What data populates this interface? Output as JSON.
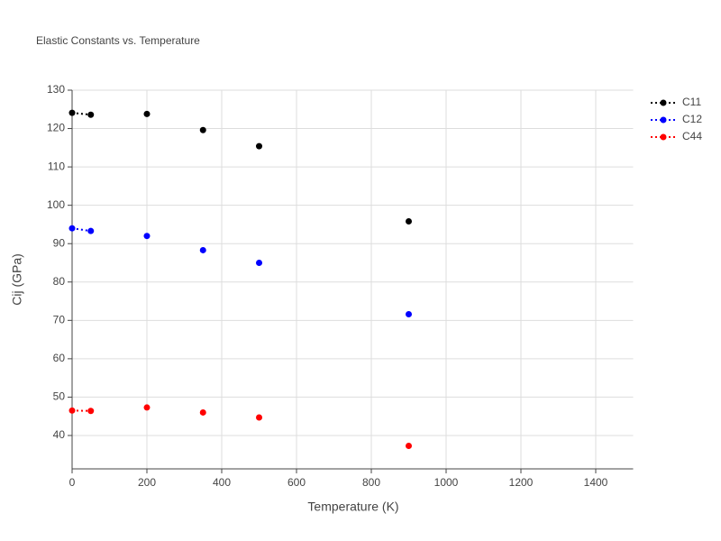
{
  "chart_data": {
    "type": "line",
    "title": "Elastic Constants vs. Temperature",
    "x_label": "Temperature (K)",
    "y_label": "Cij (GPa)",
    "x": [
      0,
      50,
      null,
      200,
      null,
      350,
      null,
      500,
      null,
      900
    ],
    "series": [
      {
        "name": "C11",
        "color": "#000000",
        "values": [
          124.1,
          123.6,
          null,
          123.8,
          null,
          119.6,
          null,
          115.4,
          null,
          95.8
        ]
      },
      {
        "name": "C12",
        "color": "#0000ff",
        "values": [
          94,
          93.3,
          null,
          92,
          null,
          88.3,
          null,
          85,
          null,
          71.6
        ]
      },
      {
        "name": "C44",
        "color": "#ff0000",
        "values": [
          46.5,
          46.4,
          null,
          47.3,
          null,
          46,
          null,
          44.7,
          null,
          37.3
        ]
      }
    ],
    "xlim": [
      0,
      1500
    ],
    "xticks": [
      0,
      200,
      400,
      600,
      800,
      1000,
      1200,
      1400
    ],
    "ylim": [
      31.3,
      130
    ],
    "yticks": [
      40,
      50,
      60,
      70,
      80,
      90,
      100,
      110,
      120,
      130
    ],
    "grid": true,
    "legend": "right"
  }
}
